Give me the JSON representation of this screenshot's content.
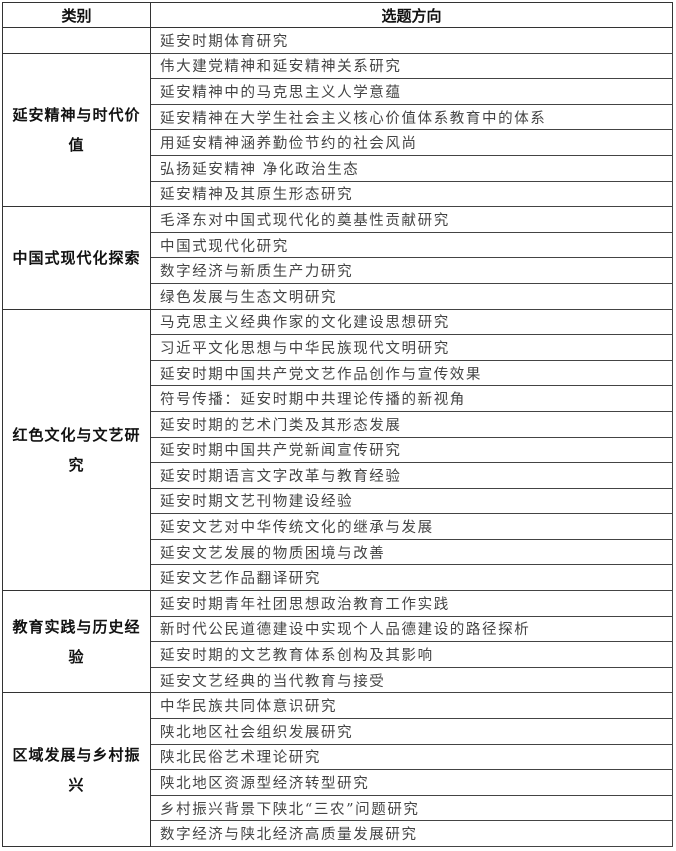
{
  "header": {
    "category": "类别",
    "direction": "选题方向"
  },
  "groups": [
    {
      "category": "",
      "items": [
        "延安时期体育研究"
      ]
    },
    {
      "category": "延安精神与时代价值",
      "items": [
        "伟大建党精神和延安精神关系研究",
        "延安精神中的马克思主义人学意蕴",
        "延安精神在大学生社会主义核心价值体系教育中的体系",
        "用延安精神涵养勤俭节约的社会风尚",
        "弘扬延安精神 净化政治生态",
        "延安精神及其原生形态研究"
      ]
    },
    {
      "category": "中国式现代化探索",
      "items": [
        "毛泽东对中国式现代化的奠基性贡献研究",
        "中国式现代化研究",
        "数字经济与新质生产力研究",
        "绿色发展与生态文明研究"
      ]
    },
    {
      "category": "红色文化与文艺研究",
      "items": [
        "马克思主义经典作家的文化建设思想研究",
        "习近平文化思想与中华民族现代文明研究",
        "延安时期中国共产党文艺作品创作与宣传效果",
        "符号传播：延安时期中共理论传播的新视角",
        "延安时期的艺术门类及其形态发展",
        "延安时期中国共产党新闻宣传研究",
        "延安时期语言文字改革与教育经验",
        "延安时期文艺刊物建设经验",
        "延安文艺对中华传统文化的继承与发展",
        "延安文艺发展的物质困境与改善",
        "延安文艺作品翻译研究"
      ]
    },
    {
      "category": "教育实践与历史经验",
      "items": [
        "延安时期青年社团思想政治教育工作实践",
        "新时代公民道德建设中实现个人品德建设的路径探析",
        "延安时期的文艺教育体系创构及其影响",
        "延安文艺经典的当代教育与接受"
      ]
    },
    {
      "category": "区域发展与乡村振兴",
      "items": [
        "中华民族共同体意识研究",
        "陕北地区社会组织发展研究",
        "陕北民俗艺术理论研究",
        "陕北地区资源型经济转型研究",
        "乡村振兴背景下陕北“三农”问题研究",
        "数字经济与陕北经济高质量发展研究"
      ]
    }
  ]
}
